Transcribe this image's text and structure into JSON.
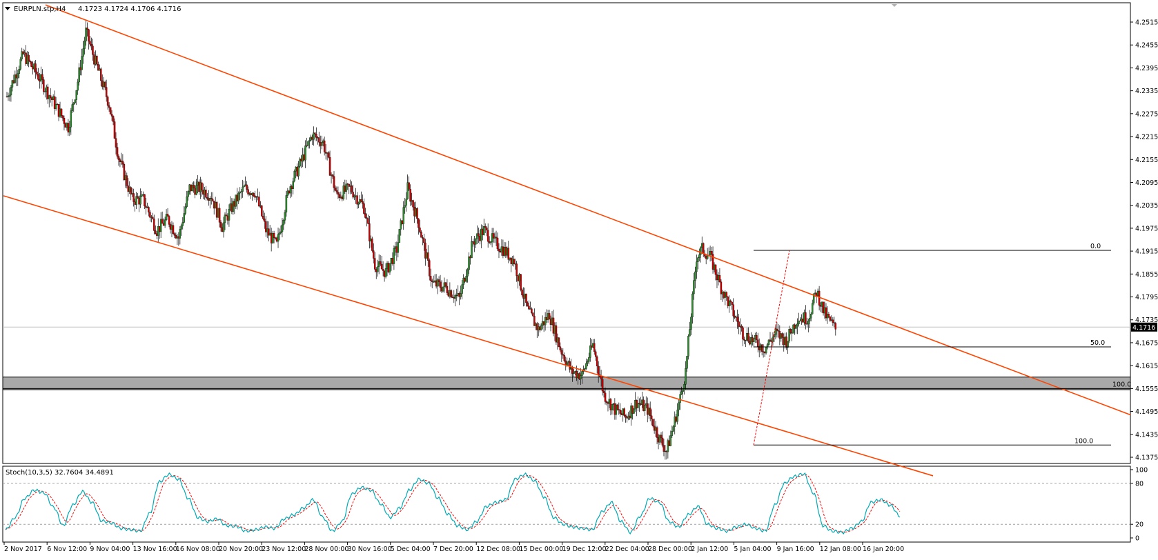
{
  "header": {
    "symbol_text": "EURPLN.stp,H4",
    "ohlc_text": "4.1723 4.1724 4.1706 4.1716",
    "menu_icon": "triangle-down-icon"
  },
  "chart_data": [
    {
      "type": "candlestick",
      "title": "EURPLN.stp,H4  4.1723 4.1724 4.1706 4.1716",
      "y_ticks": [
        "4.2515",
        "4.2455",
        "4.2395",
        "4.2335",
        "4.2275",
        "4.2215",
        "4.2155",
        "4.2095",
        "4.2035",
        "4.1975",
        "4.1915",
        "4.1855",
        "4.1795",
        "4.1735",
        "4.1675",
        "4.1615",
        "4.1555",
        "4.1495",
        "4.1435",
        "4.1375"
      ],
      "ylim": [
        4.1375,
        4.2545
      ],
      "current_price": "4.1716",
      "x_labels": [
        "2 Nov 2017",
        "6 Nov 12:00",
        "9 Nov 04:00",
        "13 Nov 16:00",
        "16 Nov 08:00",
        "20 Nov 20:00",
        "23 Nov 12:00",
        "28 Nov 00:00",
        "30 Nov 16:00",
        "5 Dec 04:00",
        "7 Dec 20:00",
        "12 Dec 08:00",
        "15 Dec 00:00",
        "19 Dec 12:00",
        "22 Dec 04:00",
        "28 Dec 00:00",
        "2 Jan 12:00",
        "5 Jan 04:00",
        "9 Jan 16:00",
        "12 Jan 08:00",
        "16 Jan 20:00"
      ],
      "colors": {
        "bull": "#2e8b2e",
        "bear": "#cc0000",
        "channel": "#ff4500",
        "zone": "#a8a8a8"
      },
      "price_path": [
        [
          0,
          4.232
        ],
        [
          12,
          4.243
        ],
        [
          22,
          4.238
        ],
        [
          35,
          4.23
        ],
        [
          45,
          4.224
        ],
        [
          52,
          4.236
        ],
        [
          58,
          4.249
        ],
        [
          64,
          4.242
        ],
        [
          75,
          4.23
        ],
        [
          82,
          4.216
        ],
        [
          92,
          4.205
        ],
        [
          100,
          4.205
        ],
        [
          110,
          4.197
        ],
        [
          118,
          4.2
        ],
        [
          126,
          4.195
        ],
        [
          134,
          4.208
        ],
        [
          142,
          4.208
        ],
        [
          150,
          4.206
        ],
        [
          158,
          4.198
        ],
        [
          165,
          4.203
        ],
        [
          174,
          4.208
        ],
        [
          182,
          4.207
        ],
        [
          190,
          4.197
        ],
        [
          198,
          4.193
        ],
        [
          207,
          4.208
        ],
        [
          216,
          4.215
        ],
        [
          224,
          4.222
        ],
        [
          232,
          4.22
        ],
        [
          242,
          4.206
        ],
        [
          252,
          4.208
        ],
        [
          262,
          4.203
        ],
        [
          270,
          4.188
        ],
        [
          278,
          4.186
        ],
        [
          286,
          4.192
        ],
        [
          294,
          4.208
        ],
        [
          302,
          4.199
        ],
        [
          312,
          4.183
        ],
        [
          322,
          4.182
        ],
        [
          332,
          4.179
        ],
        [
          342,
          4.194
        ],
        [
          350,
          4.197
        ],
        [
          357,
          4.194
        ],
        [
          364,
          4.192
        ],
        [
          372,
          4.189
        ],
        [
          382,
          4.176
        ],
        [
          390,
          4.171
        ],
        [
          398,
          4.175
        ],
        [
          406,
          4.166
        ],
        [
          414,
          4.16
        ],
        [
          422,
          4.159
        ],
        [
          430,
          4.167
        ],
        [
          438,
          4.154
        ],
        [
          446,
          4.15
        ],
        [
          454,
          4.148
        ],
        [
          462,
          4.152
        ],
        [
          470,
          4.15
        ],
        [
          478,
          4.143
        ],
        [
          484,
          4.139
        ],
        [
          490,
          4.147
        ],
        [
          494,
          4.153
        ],
        [
          498,
          4.16
        ],
        [
          502,
          4.175
        ],
        [
          506,
          4.19
        ],
        [
          510,
          4.192
        ],
        [
          516,
          4.19
        ],
        [
          524,
          4.182
        ],
        [
          532,
          4.176
        ],
        [
          540,
          4.17
        ],
        [
          548,
          4.168
        ],
        [
          556,
          4.166
        ],
        [
          564,
          4.17
        ],
        [
          572,
          4.168
        ],
        [
          580,
          4.174
        ],
        [
          588,
          4.174
        ],
        [
          594,
          4.181
        ],
        [
          600,
          4.175
        ],
        [
          608,
          4.171
        ]
      ],
      "channel_upper": {
        "from": [
          "2 Nov 2017",
          4.256
        ],
        "to": [
          "16 Jan 20:00",
          4.186
        ]
      },
      "channel_lower": {
        "from": [
          "2 Nov 2017",
          4.206
        ],
        "to": [
          "12 Jan 08:00",
          4.146
        ]
      },
      "support_zone": [
        4.1552,
        4.1585
      ],
      "fibonacci": {
        "levels": [
          {
            "label": "0.0",
            "price": 4.1917
          },
          {
            "label": "50.0",
            "price": 4.1664
          },
          {
            "label": "100.0",
            "price": 4.1555
          },
          {
            "label": "100.0",
            "price": 4.1407
          }
        ]
      }
    },
    {
      "type": "line",
      "title": "Stoch(10,3,5) 32.7604 34.4891",
      "y_ticks": [
        "100",
        "80",
        "20",
        "0"
      ],
      "ylim": [
        0,
        100
      ],
      "levels": [
        20,
        80
      ],
      "series": [
        {
          "name": "32.7604",
          "color": "#00aab4",
          "style": "solid"
        },
        {
          "name": "34.4891",
          "color": "#ff0000",
          "style": "dashed"
        }
      ],
      "values": [
        12,
        30,
        58,
        70,
        66,
        45,
        18,
        48,
        68,
        52,
        25,
        22,
        14,
        12,
        10,
        36,
        82,
        93,
        86,
        58,
        30,
        24,
        28,
        18,
        17,
        10,
        12,
        16,
        14,
        28,
        34,
        44,
        56,
        30,
        10,
        24,
        64,
        74,
        70,
        50,
        30,
        44,
        70,
        86,
        80,
        58,
        35,
        18,
        12,
        24,
        46,
        52,
        56,
        86,
        93,
        84,
        60,
        30,
        20,
        16,
        14,
        12,
        38,
        52,
        24,
        8,
        32,
        58,
        52,
        24,
        16,
        34,
        46,
        20,
        14,
        10,
        16,
        20,
        14,
        10,
        48,
        80,
        90,
        94,
        66,
        18,
        10,
        8,
        14,
        24,
        52,
        56,
        48,
        32
      ]
    }
  ]
}
